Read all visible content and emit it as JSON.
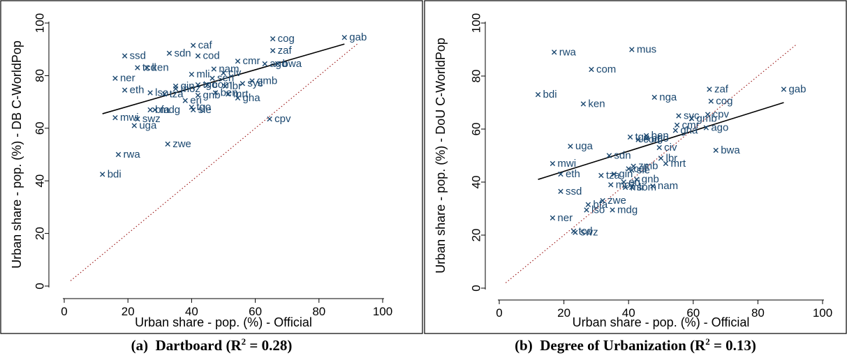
{
  "captions": [
    {
      "label": "(a)",
      "title": "Dartboard (R",
      "sup": "2",
      "rest": " = 0.28)"
    },
    {
      "label": "(b)",
      "title": "Degree of Urbanization (R",
      "sup": "2",
      "rest": " = 0.13)"
    }
  ],
  "colors": {
    "marker": "#1a476f",
    "fit_line": "#000000",
    "diagonal": "#a02020",
    "frame": "#000000"
  },
  "chart_data": [
    {
      "type": "scatter",
      "xlabel": "Urban share - pop. (%) - Official",
      "ylabel": "Urban share - pop. (%) - DB C-WorldPop",
      "xlim": [
        0,
        100
      ],
      "ylim": [
        0,
        100
      ],
      "xticks": [
        0,
        20,
        40,
        60,
        80,
        100
      ],
      "yticks": [
        0,
        20,
        40,
        60,
        80,
        100
      ],
      "grid": false,
      "marker": "x",
      "fit_line": {
        "x": [
          12,
          88
        ],
        "y": [
          65.5,
          92
        ]
      },
      "reference_line": {
        "label": "45-degree",
        "x": [
          2,
          92
        ],
        "y": [
          2,
          92
        ]
      },
      "points": [
        {
          "label": "gab",
          "x": 88,
          "y": 94.5
        },
        {
          "label": "cog",
          "x": 65.5,
          "y": 94
        },
        {
          "label": "zaf",
          "x": 65.5,
          "y": 89.5
        },
        {
          "label": "caf",
          "x": 40.5,
          "y": 91.5
        },
        {
          "label": "sdn",
          "x": 33,
          "y": 88.5
        },
        {
          "label": "cod",
          "x": 42,
          "y": 87.5
        },
        {
          "label": "ssd",
          "x": 19,
          "y": 87.5
        },
        {
          "label": "cmr",
          "x": 54.5,
          "y": 85.5
        },
        {
          "label": "ago",
          "x": 63,
          "y": 84.5
        },
        {
          "label": "bwa",
          "x": 67,
          "y": 84.5
        },
        {
          "label": "ken",
          "x": 26,
          "y": 83
        },
        {
          "label": "tcd",
          "x": 23,
          "y": 83
        },
        {
          "label": "nam",
          "x": 47,
          "y": 82.5
        },
        {
          "label": "civ",
          "x": 50,
          "y": 81
        },
        {
          "label": "mli",
          "x": 40,
          "y": 80.5
        },
        {
          "label": "ner",
          "x": 16,
          "y": 79
        },
        {
          "label": "sen",
          "x": 46.5,
          "y": 79
        },
        {
          "label": "gmb",
          "x": 59,
          "y": 78
        },
        {
          "label": "syc",
          "x": 56,
          "y": 77
        },
        {
          "label": "gin",
          "x": 35,
          "y": 76
        },
        {
          "label": "tgo",
          "x": 42,
          "y": 76.5
        },
        {
          "label": "com",
          "x": 45,
          "y": 76.5
        },
        {
          "label": "lbr",
          "x": 50.5,
          "y": 76
        },
        {
          "label": "eth",
          "x": 19,
          "y": 74.5
        },
        {
          "label": "lso",
          "x": 27,
          "y": 73.5
        },
        {
          "label": "tza",
          "x": 31.5,
          "y": 73
        },
        {
          "label": "moz",
          "x": 35,
          "y": 75
        },
        {
          "label": "ben",
          "x": 47.5,
          "y": 73.5
        },
        {
          "label": "gnb",
          "x": 42,
          "y": 72.5
        },
        {
          "label": "mrt",
          "x": 51.5,
          "y": 73
        },
        {
          "label": "gha",
          "x": 54.5,
          "y": 71.5
        },
        {
          "label": "eri",
          "x": 38,
          "y": 70.5
        },
        {
          "label": "tgo",
          "x": 40,
          "y": 68
        },
        {
          "label": "sle",
          "x": 40.5,
          "y": 67
        },
        {
          "label": "bfa",
          "x": 27,
          "y": 67
        },
        {
          "label": "mdg",
          "x": 28.5,
          "y": 67
        },
        {
          "label": "cpv",
          "x": 64.5,
          "y": 63.5
        },
        {
          "label": "mwi",
          "x": 16,
          "y": 64
        },
        {
          "label": "swz",
          "x": 23,
          "y": 63.5
        },
        {
          "label": "uga",
          "x": 22,
          "y": 61
        },
        {
          "label": "zwe",
          "x": 32.5,
          "y": 54
        },
        {
          "label": "rwa",
          "x": 17,
          "y": 50
        },
        {
          "label": "bdi",
          "x": 12,
          "y": 42.5
        }
      ]
    },
    {
      "type": "scatter",
      "xlabel": "Urban share - pop. (%) - Official",
      "ylabel": "Urban share - pop. (%) - DoU C-WorldPop",
      "xlim": [
        0,
        100
      ],
      "ylim": [
        0,
        100
      ],
      "xticks": [
        0,
        20,
        40,
        60,
        80,
        100
      ],
      "yticks": [
        0,
        20,
        40,
        60,
        80,
        100
      ],
      "grid": false,
      "marker": "x",
      "fit_line": {
        "x": [
          12,
          88
        ],
        "y": [
          41,
          70
        ]
      },
      "reference_line": {
        "label": "45-degree",
        "x": [
          2,
          92
        ],
        "y": [
          2,
          92
        ]
      },
      "points": [
        {
          "label": "mus",
          "x": 41,
          "y": 90
        },
        {
          "label": "rwa",
          "x": 17,
          "y": 89
        },
        {
          "label": "com",
          "x": 28.5,
          "y": 82.5
        },
        {
          "label": "gab",
          "x": 88,
          "y": 75
        },
        {
          "label": "zaf",
          "x": 65,
          "y": 75
        },
        {
          "label": "bdi",
          "x": 12,
          "y": 73
        },
        {
          "label": "nga",
          "x": 48,
          "y": 72
        },
        {
          "label": "cog",
          "x": 65.5,
          "y": 70.5
        },
        {
          "label": "ken",
          "x": 26,
          "y": 69.5
        },
        {
          "label": "syc",
          "x": 55.5,
          "y": 65
        },
        {
          "label": "cpv",
          "x": 64.5,
          "y": 65.5
        },
        {
          "label": "gmb",
          "x": 59.5,
          "y": 64
        },
        {
          "label": "cmr",
          "x": 55,
          "y": 61.5
        },
        {
          "label": "ago",
          "x": 64,
          "y": 60.5
        },
        {
          "label": "gha",
          "x": 54.5,
          "y": 59.5
        },
        {
          "label": "tgo",
          "x": 40.5,
          "y": 57
        },
        {
          "label": "ben",
          "x": 45.5,
          "y": 57.5
        },
        {
          "label": "bgo",
          "x": 45.5,
          "y": 56.5
        },
        {
          "label": "cod",
          "x": 43,
          "y": 56
        },
        {
          "label": "uga",
          "x": 22,
          "y": 53.5
        },
        {
          "label": "civ",
          "x": 49.5,
          "y": 53
        },
        {
          "label": "bwa",
          "x": 67,
          "y": 52
        },
        {
          "label": "sdn",
          "x": 34,
          "y": 50
        },
        {
          "label": "lbr",
          "x": 50,
          "y": 49
        },
        {
          "label": "mwi",
          "x": 16.5,
          "y": 47
        },
        {
          "label": "mrt",
          "x": 51.5,
          "y": 47
        },
        {
          "label": "zmb",
          "x": 41.5,
          "y": 46
        },
        {
          "label": "caf",
          "x": 40,
          "y": 45
        },
        {
          "label": "sle",
          "x": 41,
          "y": 44.5
        },
        {
          "label": "eth",
          "x": 19,
          "y": 43
        },
        {
          "label": "tza",
          "x": 31.5,
          "y": 42.5
        },
        {
          "label": "gin",
          "x": 35.5,
          "y": 43
        },
        {
          "label": "gnb",
          "x": 42.5,
          "y": 41
        },
        {
          "label": "eri",
          "x": 38.5,
          "y": 40
        },
        {
          "label": "moz",
          "x": 34.5,
          "y": 39
        },
        {
          "label": "nam",
          "x": 47.5,
          "y": 38.5
        },
        {
          "label": "mli",
          "x": 39,
          "y": 38
        },
        {
          "label": "som",
          "x": 41,
          "y": 38
        },
        {
          "label": "ssd",
          "x": 19,
          "y": 36.5
        },
        {
          "label": "zwe",
          "x": 32,
          "y": 33
        },
        {
          "label": "bfa",
          "x": 27.5,
          "y": 31.5
        },
        {
          "label": "lso",
          "x": 27,
          "y": 29.5
        },
        {
          "label": "mdg",
          "x": 35,
          "y": 29.5
        },
        {
          "label": "ner",
          "x": 16.5,
          "y": 26.5
        },
        {
          "label": "tcd",
          "x": 23,
          "y": 21.5
        },
        {
          "label": "swz",
          "x": 23.5,
          "y": 21
        }
      ]
    }
  ]
}
